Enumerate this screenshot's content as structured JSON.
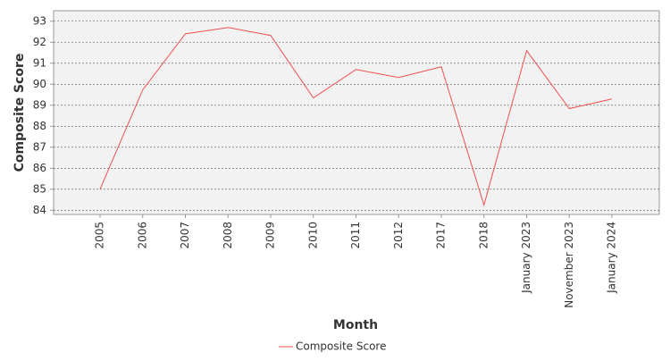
{
  "chart_data": {
    "type": "line",
    "x_label": "Month",
    "y_label": "Composite Score",
    "categories": [
      "2005",
      "2006",
      "2007",
      "2008",
      "2009",
      "2010",
      "2011",
      "2012",
      "2017",
      "2018",
      "January 2023",
      "November 2023",
      "January 2024"
    ],
    "series": [
      {
        "name": "Composite Score",
        "color": "#f05050",
        "values": [
          85.0,
          89.73,
          92.4,
          92.7,
          92.32,
          89.35,
          90.7,
          90.32,
          90.83,
          84.25,
          91.6,
          88.84,
          89.3
        ]
      }
    ],
    "ylim": [
      83.8,
      93.5
    ],
    "yticks": [
      84,
      85,
      86,
      87,
      88,
      89,
      90,
      91,
      92,
      93
    ],
    "grid": true,
    "legend": "bottom"
  }
}
